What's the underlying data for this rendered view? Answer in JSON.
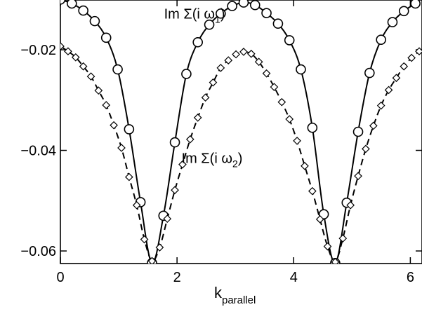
{
  "chart_data": {
    "type": "line",
    "xlabel": "k",
    "xlabel_sub": "parallel",
    "ylabel": "",
    "xlim": [
      0,
      6.2
    ],
    "ylim": [
      -0.0625,
      -0.0101
    ],
    "x_ticks": [
      0,
      2,
      4,
      6
    ],
    "x_tick_labels": [
      "0",
      "2",
      "4",
      "6"
    ],
    "y_ticks": [
      -0.02,
      -0.04,
      -0.06
    ],
    "y_tick_labels": [
      "−0.02",
      "−0.04",
      "−0.06"
    ],
    "grid": false,
    "annotations": [
      {
        "text": "Im Σ(i ω",
        "sub": "1",
        "close": ")",
        "x": 2.3,
        "y": -0.0138,
        "series": "solid"
      },
      {
        "text": "Im Σ(i ω",
        "sub": "2",
        "close": ")",
        "x": 2.6,
        "y": -0.0425,
        "series": "dashed"
      }
    ],
    "series": [
      {
        "line_style": "solid",
        "marker": "circle",
        "color": "#000000",
        "x": [
          0.0,
          0.196,
          0.393,
          0.589,
          0.785,
          0.982,
          1.178,
          1.374,
          1.571,
          1.767,
          1.963,
          2.16,
          2.356,
          2.553,
          2.749,
          2.945,
          3.142,
          3.338,
          3.534,
          3.731,
          3.927,
          4.123,
          4.32,
          4.516,
          4.712,
          4.909,
          5.105,
          5.301,
          5.498,
          5.694,
          5.89,
          6.087
        ],
        "y": [
          -0.01,
          -0.0108,
          -0.0122,
          -0.0143,
          -0.0176,
          -0.0239,
          -0.0358,
          -0.0503,
          -0.0624,
          -0.053,
          -0.0384,
          -0.0248,
          -0.0185,
          -0.015,
          -0.0128,
          -0.0113,
          -0.0106,
          -0.0111,
          -0.0127,
          -0.0148,
          -0.0181,
          -0.0239,
          -0.0355,
          -0.0527,
          -0.0624,
          -0.0504,
          -0.0363,
          -0.0246,
          -0.018,
          -0.0145,
          -0.0123,
          -0.0108
        ]
      },
      {
        "line_style": "dashed",
        "marker": "diamond",
        "color": "#000000",
        "x": [
          0.0,
          0.131,
          0.262,
          0.393,
          0.524,
          0.654,
          0.785,
          0.916,
          1.047,
          1.178,
          1.309,
          1.44,
          1.571,
          1.702,
          1.833,
          1.963,
          2.094,
          2.225,
          2.356,
          2.487,
          2.618,
          2.749,
          2.88,
          3.011,
          3.142,
          3.272,
          3.403,
          3.534,
          3.665,
          3.796,
          3.927,
          4.058,
          4.189,
          4.32,
          4.451,
          4.581,
          4.712,
          4.843,
          4.974,
          5.105,
          5.236,
          5.367,
          5.498,
          5.629,
          5.76,
          5.89,
          6.021,
          6.152
        ],
        "y": [
          -0.0193,
          -0.0203,
          -0.0215,
          -0.0233,
          -0.0253,
          -0.0281,
          -0.031,
          -0.035,
          -0.0395,
          -0.0453,
          -0.0509,
          -0.0577,
          -0.062,
          -0.0593,
          -0.0536,
          -0.0479,
          -0.0428,
          -0.0378,
          -0.0335,
          -0.0295,
          -0.0265,
          -0.0236,
          -0.0221,
          -0.0209,
          -0.0204,
          -0.0208,
          -0.0224,
          -0.0247,
          -0.0274,
          -0.0304,
          -0.0338,
          -0.0381,
          -0.0431,
          -0.0481,
          -0.0537,
          -0.0591,
          -0.0622,
          -0.0575,
          -0.0509,
          -0.0451,
          -0.0397,
          -0.0351,
          -0.0311,
          -0.028,
          -0.0256,
          -0.0233,
          -0.0216,
          -0.0203
        ]
      }
    ]
  }
}
